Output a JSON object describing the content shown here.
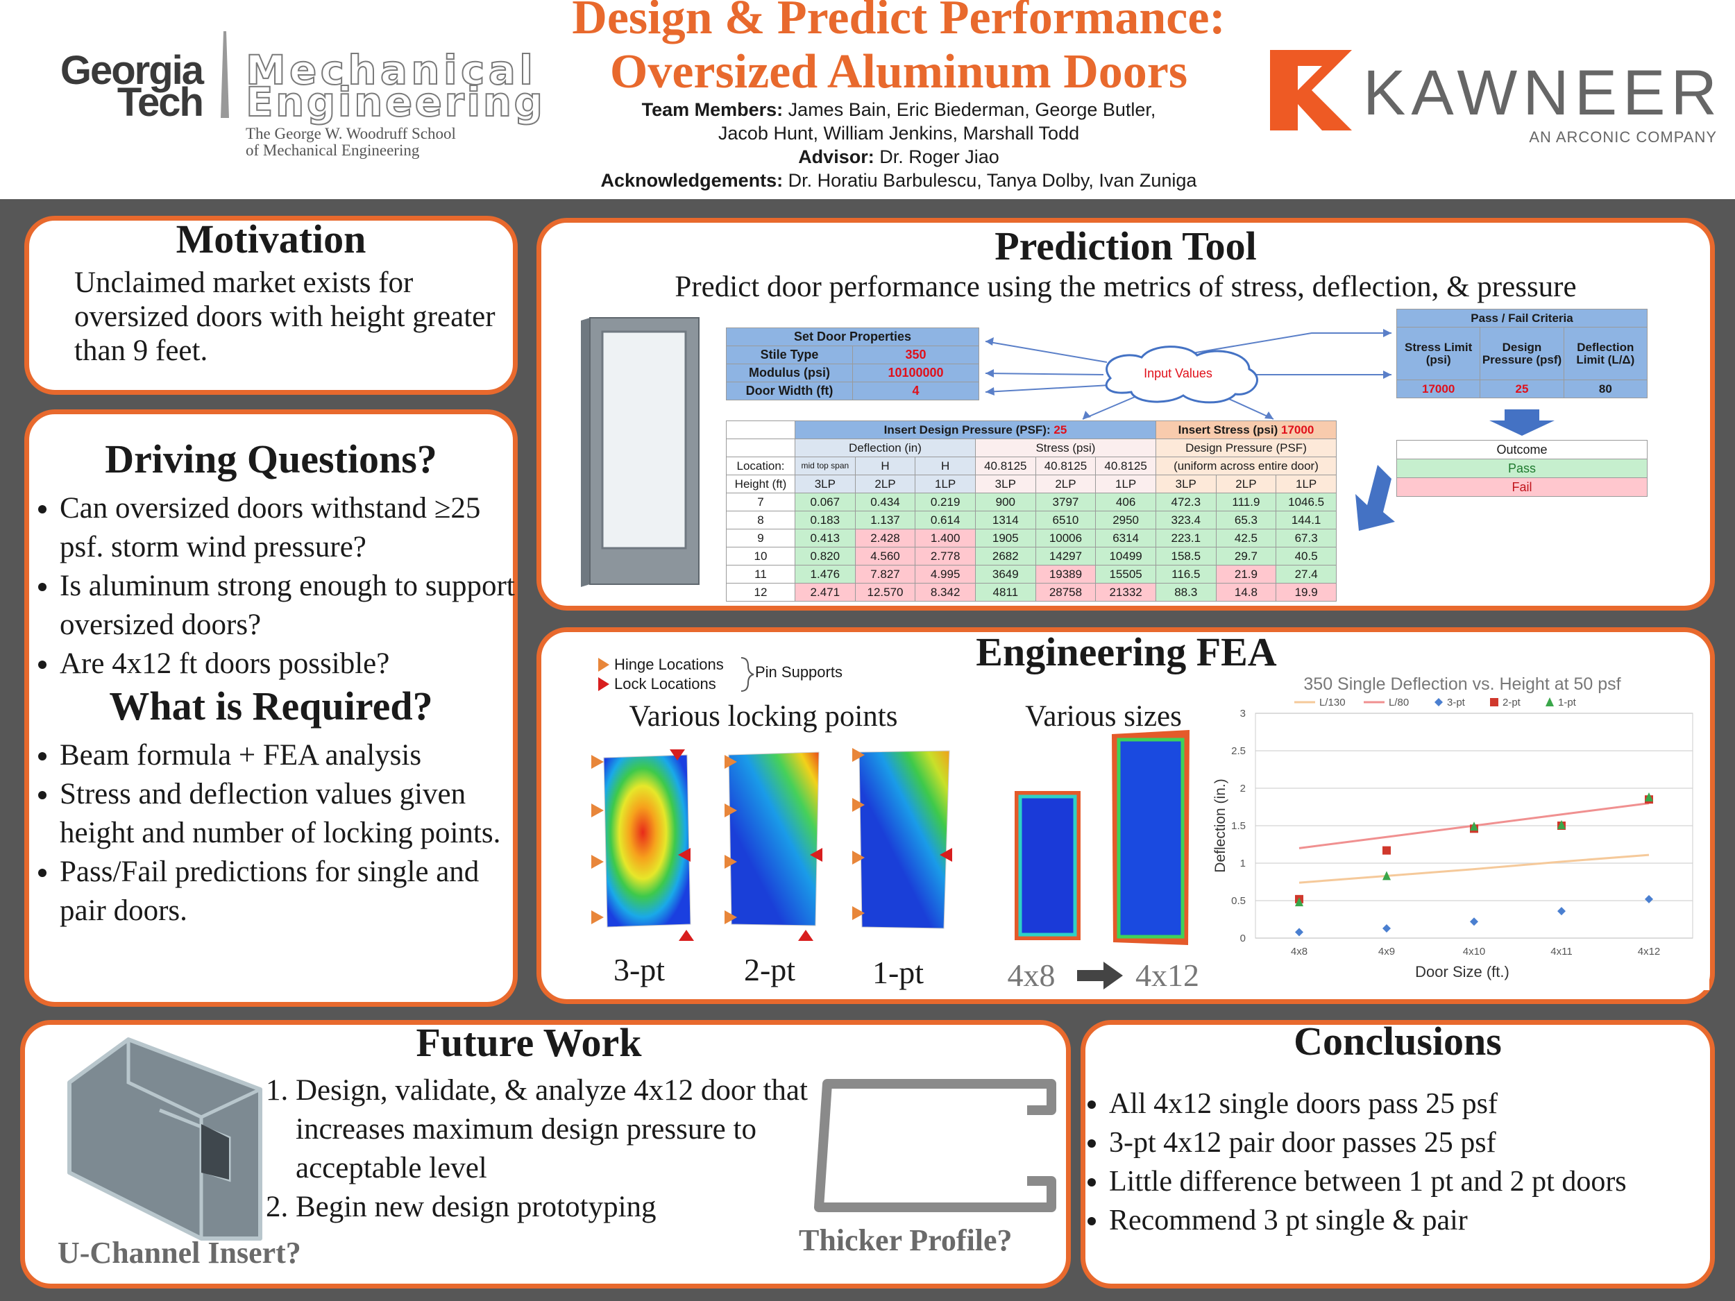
{
  "header": {
    "title": [
      "Design & Predict Performance:",
      "Oversized Aluminum Doors"
    ],
    "team_label": "Team Members:",
    "team": [
      "James Bain, Eric Biederman, George Butler,",
      "Jacob Hunt, William Jenkins, Marshall Todd"
    ],
    "advisor_label": "Advisor:",
    "advisor": "Dr. Roger Jiao",
    "acknowledgements_label": "Acknowledgements:",
    "acknowledgements": "Dr. Horatiu Barbulescu, Tanya Dolby, Ivan Zuniga"
  },
  "logos": {
    "gt": [
      "Georgia",
      "Tech"
    ],
    "me": [
      "Mechanical",
      "Engineering"
    ],
    "school": [
      "The George W. Woodruff School",
      "of Mechanical Engineering"
    ],
    "kawneer": "KAWNEER",
    "kawneer_sub": "AN ARCONIC COMPANY"
  },
  "motivation": {
    "title": "Motivation",
    "text": "Unclaimed market exists for oversized doors with height greater than 9 feet."
  },
  "driving_questions": {
    "title": "Driving Questions?",
    "items": [
      "Can oversized doors withstand ≥25 psf. storm wind pressure?",
      "Is aluminum strong enough to support oversized doors?",
      "Are 4x12 ft doors possible?"
    ]
  },
  "requirements": {
    "title": "What is Required?",
    "items": [
      "Beam formula + FEA analysis",
      "Stress and deflection values given height and number of locking points.",
      "Pass/Fail predictions for single and pair doors."
    ]
  },
  "prediction_tool": {
    "title": "Prediction Tool",
    "subtitle": "Predict door performance using the metrics of stress, deflection, & pressure",
    "door_properties": {
      "title": "Set Door Properties",
      "rows": [
        [
          "Stile Type",
          350
        ],
        [
          "Modulus (psi)",
          10100000
        ],
        [
          "Door Width (ft)",
          4
        ]
      ]
    },
    "input_label": "Input Values",
    "criteria": {
      "title": "Pass / Fail Criteria",
      "headers": [
        "Stress Limit (psi)",
        "Design Pressure (psf)",
        "Deflection Limit (L/Δ)"
      ],
      "values": [
        17000,
        25,
        80
      ]
    },
    "outcome": {
      "title": "Outcome",
      "pass": "Pass",
      "fail": "Fail"
    },
    "table": {
      "pressure_label": "Insert Design Pressure (PSF):",
      "pressure": 25,
      "stress_label": "Insert Stress (psi)",
      "stress": 17000,
      "groups": [
        "Deflection (in)",
        "Stress (psi)",
        "Design Pressure (PSF)"
      ],
      "group_note": "(uniform across entire door)",
      "location_label": "Location:",
      "locations": [
        "mid top span",
        "H",
        "H",
        40.8125,
        40.8125,
        40.8125
      ],
      "height_label": "Height (ft)",
      "columns": [
        "3LP",
        "2LP",
        "1LP",
        "3LP",
        "2LP",
        "1LP",
        "3LP",
        "2LP",
        "1LP"
      ],
      "rows": [
        [
          7,
          "0.067",
          "0.434",
          "0.219",
          900,
          3797,
          406,
          472.3,
          111.9,
          1046.5
        ],
        [
          8,
          "0.183",
          "1.137",
          "0.614",
          1314,
          6510,
          2950,
          323.4,
          65.3,
          144.1
        ],
        [
          9,
          "0.413",
          "2.428",
          "1.400",
          1905,
          10006,
          6314,
          223.1,
          42.5,
          67.3
        ],
        [
          10,
          "0.820",
          "4.560",
          "2.778",
          2682,
          14297,
          10499,
          158.5,
          29.7,
          40.5
        ],
        [
          11,
          "1.476",
          "7.827",
          "4.995",
          3649,
          19389,
          15505,
          116.5,
          21.9,
          27.4
        ],
        [
          12,
          "2.471",
          "12.570",
          "8.342",
          4811,
          28758,
          21332,
          88.3,
          14.8,
          19.9
        ]
      ]
    }
  },
  "fea": {
    "title": "Engineering FEA",
    "legend": [
      "Hinge Locations",
      "Lock Locations"
    ],
    "support_label": "Pin Supports",
    "locking_title": "Various locking points",
    "locking_labels": [
      "3-pt",
      "2-pt",
      "1-pt"
    ],
    "sizes_title": "Various sizes",
    "size_labels": [
      "4x8",
      "4x12"
    ]
  },
  "chart_data": {
    "type": "line",
    "title": "350 Single Deflection vs. Height at 50 psf",
    "x_label": "Door Size (ft.)",
    "y_label": "Deflection (in.)",
    "categories": [
      "4x8",
      "4x9",
      "4x10",
      "4x11",
      "4x12"
    ],
    "ylim": [
      0,
      3
    ],
    "yticks": [
      0,
      0.5,
      1,
      1.5,
      2,
      2.5,
      3
    ],
    "grid": true,
    "series": [
      {
        "name": "L/130",
        "color": "#f5c99a",
        "line": true,
        "marker": null,
        "values": [
          0.74,
          0.83,
          0.92,
          1.02,
          1.11
        ]
      },
      {
        "name": "L/80",
        "color": "#f09090",
        "line": true,
        "marker": null,
        "values": [
          1.2,
          1.35,
          1.5,
          1.65,
          1.8
        ]
      },
      {
        "name": "3-pt",
        "color": "#4a7fd0",
        "line": false,
        "marker": "diamond",
        "values": [
          0.08,
          0.13,
          0.22,
          0.36,
          0.52
        ]
      },
      {
        "name": "2-pt",
        "color": "#d0382c",
        "line": false,
        "marker": "square",
        "values": [
          0.52,
          1.17,
          1.46,
          1.5,
          1.85
        ]
      },
      {
        "name": "1-pt",
        "color": "#3aa64a",
        "line": false,
        "marker": "triangle",
        "values": [
          0.48,
          0.83,
          1.49,
          1.51,
          1.88
        ]
      }
    ]
  },
  "future_work": {
    "title": "Future Work",
    "items": [
      "Design, validate, & analyze 4x12 door that increases maximum design pressure to acceptable level",
      "Begin new design prototyping"
    ],
    "insert_label": "U-Channel Insert?",
    "profile_label": "Thicker Profile?"
  },
  "conclusions": {
    "title": "Conclusions",
    "items": [
      "All 4x12 single doors pass 25 psf",
      "3-pt 4x12 pair door passes 25 psf",
      "Little difference between 1 pt and 2 pt doors",
      "Recommend 3 pt single & pair"
    ]
  }
}
